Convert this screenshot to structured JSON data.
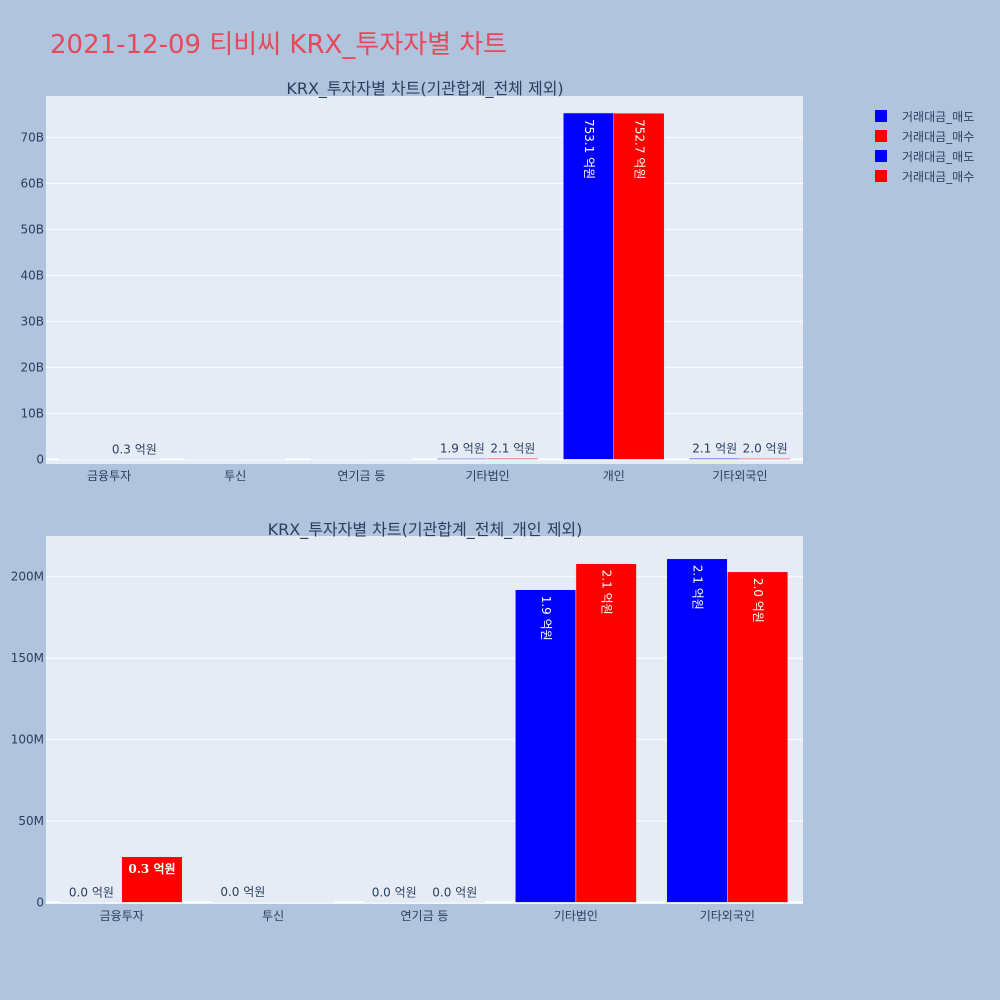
{
  "title": "2021-12-09 티비씨 KRX_투자자별 차트",
  "colors": {
    "sell": "#0000ff",
    "buy": "#ff0000"
  },
  "legend": [
    {
      "label": "거래대금_매도",
      "color": "#0000ff"
    },
    {
      "label": "거래대금_매수",
      "color": "#ff0000"
    },
    {
      "label": "거래대금_매도",
      "color": "#0000ff"
    },
    {
      "label": "거래대금_매수",
      "color": "#ff0000"
    }
  ],
  "chart_data": [
    {
      "type": "bar",
      "title": "KRX_투자자별 차트(기관합계_전체 제외)",
      "categories": [
        "금융투자",
        "투신",
        "연기금 등",
        "기타법인",
        "개인",
        "기타외국인"
      ],
      "yticks": [
        {
          "value": 0,
          "label": "0"
        },
        {
          "value": 10000000000,
          "label": "10B"
        },
        {
          "value": 20000000000,
          "label": "20B"
        },
        {
          "value": 30000000000,
          "label": "30B"
        },
        {
          "value": 40000000000,
          "label": "40B"
        },
        {
          "value": 50000000000,
          "label": "50B"
        },
        {
          "value": 60000000000,
          "label": "60B"
        },
        {
          "value": 70000000000,
          "label": "70B"
        }
      ],
      "ylim": [
        -1000000000,
        79000000000
      ],
      "series": [
        {
          "name": "거래대금_매도",
          "color": "#0000ff",
          "values": [
            0,
            0,
            0,
            190000000,
            75310000000,
            210000000
          ],
          "labels": [
            "",
            "",
            "",
            "1.9 억원",
            "753.1 억원",
            "2.1 억원"
          ]
        },
        {
          "name": "거래대금_매수",
          "color": "#ff0000",
          "values": [
            30000000,
            0,
            0,
            210000000,
            75270000000,
            200000000
          ],
          "labels": [
            "0.3 억원",
            "",
            "",
            "2.1 억원",
            "752.7 억원",
            "2.0 억원"
          ]
        }
      ]
    },
    {
      "type": "bar",
      "title": "KRX_투자자별 차트(기관합계_전체_개인 제외)",
      "categories": [
        "금융투자",
        "투신",
        "연기금 등",
        "기타법인",
        "기타외국인"
      ],
      "yticks": [
        {
          "value": 0,
          "label": "0"
        },
        {
          "value": 50000000,
          "label": "50M"
        },
        {
          "value": 100000000,
          "label": "100M"
        },
        {
          "value": 150000000,
          "label": "150M"
        },
        {
          "value": 200000000,
          "label": "200M"
        }
      ],
      "ylim": [
        -1000000,
        225000000
      ],
      "series": [
        {
          "name": "거래대금_매도",
          "color": "#0000ff",
          "values": [
            0,
            200000,
            0,
            192000000,
            211000000
          ],
          "labels": [
            "0.0 억원",
            "0.0 억원",
            "0.0 억원",
            "1.9 억원",
            "2.1 억원"
          ]
        },
        {
          "name": "거래대금_매수",
          "color": "#ff0000",
          "values": [
            28000000,
            0,
            0,
            208000000,
            203000000
          ],
          "labels": [
            "0.3 억원",
            "",
            "0.0 억원",
            "2.1 억원",
            "2.0 억원"
          ]
        }
      ]
    }
  ]
}
